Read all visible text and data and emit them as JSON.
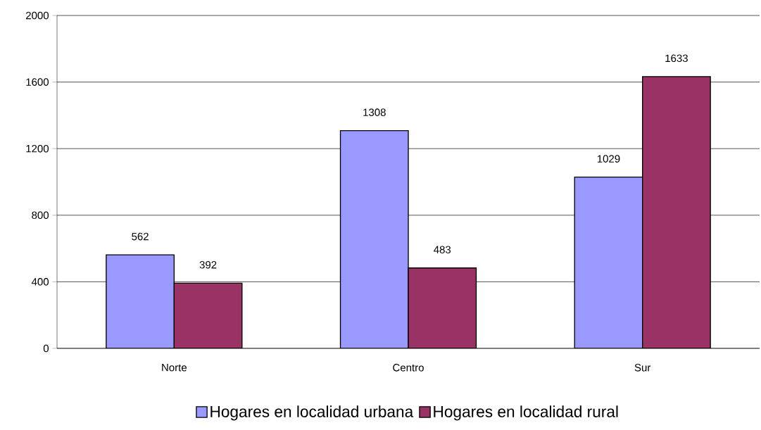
{
  "chart_data": {
    "type": "bar",
    "categories": [
      "Norte",
      "Centro",
      "Sur"
    ],
    "series": [
      {
        "name": "Hogares en localidad urbana",
        "color": "#9999ff",
        "values": [
          562,
          1308,
          1029
        ]
      },
      {
        "name": "Hogares en localidad rural",
        "color": "#993366",
        "values": [
          392,
          483,
          1633
        ]
      }
    ],
    "ylim": [
      0,
      2000
    ],
    "yticks": [
      0,
      400,
      800,
      1200,
      1600,
      2000
    ],
    "grid": "y",
    "legend": "bottom",
    "data_labels": true
  }
}
